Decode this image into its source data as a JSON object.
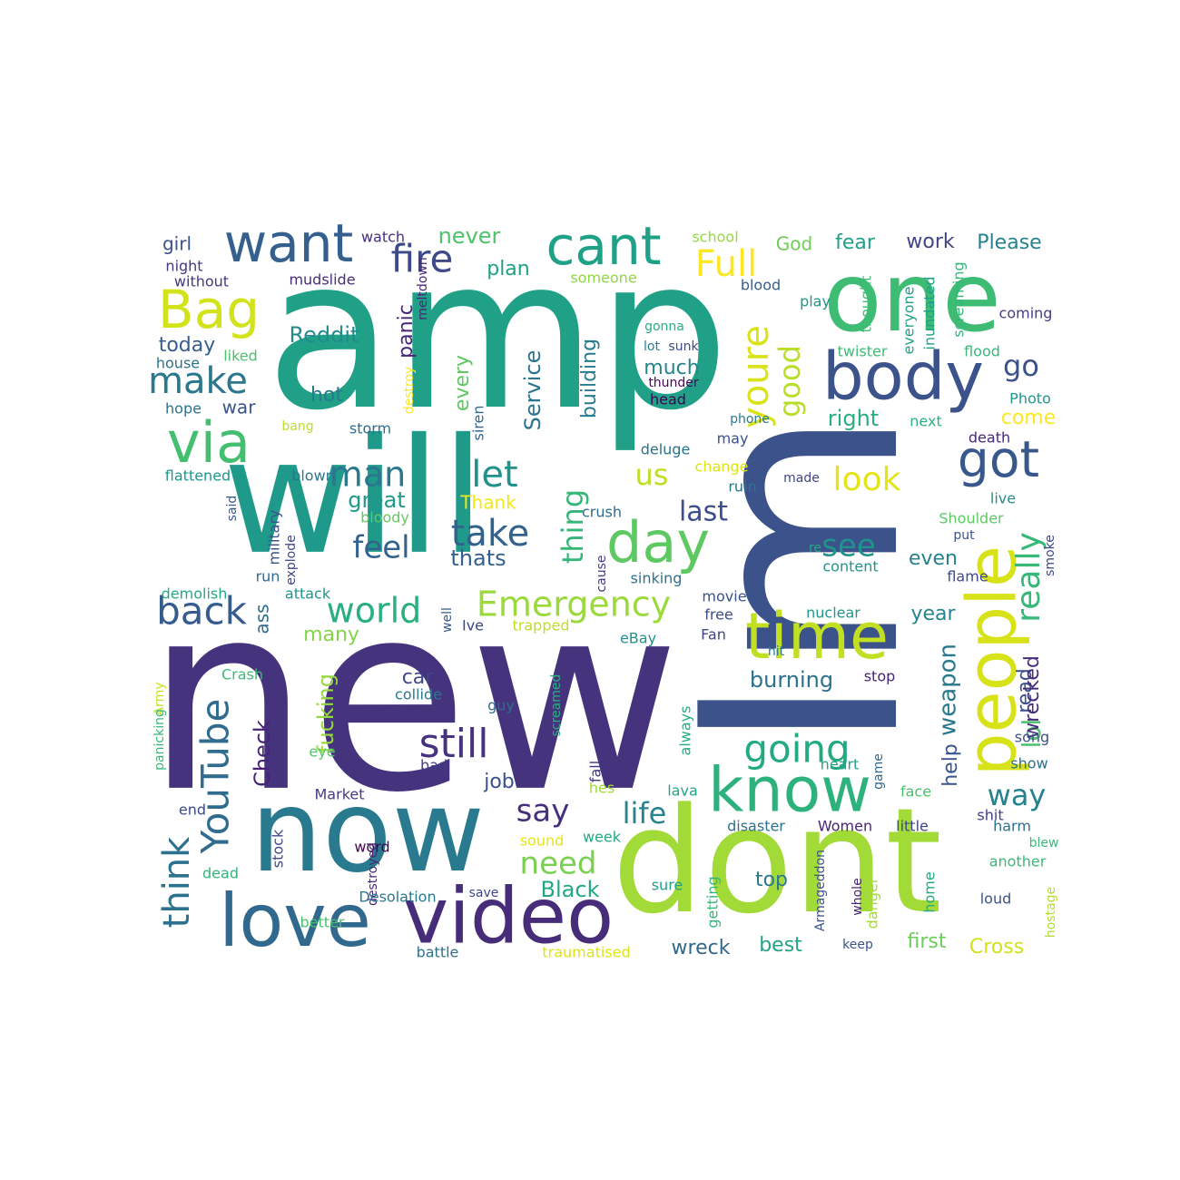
{
  "words": [
    {
      "text": "amp",
      "color": "#21a088"
    },
    {
      "text": "new",
      "color": "#46337e"
    },
    {
      "text": "Im",
      "color": "#3b528b"
    },
    {
      "text": "will",
      "color": "#1f9a8a"
    },
    {
      "text": "dont",
      "color": "#a2da37"
    },
    {
      "text": "now",
      "color": "#297a8e"
    },
    {
      "text": "one",
      "color": "#3fbc73"
    },
    {
      "text": "video",
      "color": "#472c7a"
    },
    {
      "text": "love",
      "color": "#31688e"
    },
    {
      "text": "people",
      "color": "#d8e219"
    },
    {
      "text": "body",
      "color": "#3b528b"
    },
    {
      "text": "time",
      "color": "#c2df23"
    },
    {
      "text": "know",
      "color": "#2db27d"
    },
    {
      "text": "via",
      "color": "#44bf70"
    },
    {
      "text": "want",
      "color": "#355f8d"
    },
    {
      "text": "cant",
      "color": "#1fa187"
    },
    {
      "text": "Bag",
      "color": "#d2e21b"
    },
    {
      "text": "day",
      "color": "#5ec962"
    },
    {
      "text": "got",
      "color": "#38588c"
    },
    {
      "text": "Emergency",
      "color": "#9bd93c"
    },
    {
      "text": "still",
      "color": "#46327e"
    },
    {
      "text": "YouTube",
      "color": "#2f6c8e"
    },
    {
      "text": "back",
      "color": "#365c8d"
    },
    {
      "text": "world",
      "color": "#2ab07f"
    },
    {
      "text": "going",
      "color": "#24aa83"
    },
    {
      "text": "make",
      "color": "#2a788e"
    },
    {
      "text": "take",
      "color": "#33638d"
    },
    {
      "text": "think",
      "color": "#2c728e"
    },
    {
      "text": "let",
      "color": "#20928c"
    },
    {
      "text": "man",
      "color": "#2a778e"
    },
    {
      "text": "fire",
      "color": "#3e4989"
    },
    {
      "text": "Full",
      "color": "#fde725"
    },
    {
      "text": "youre",
      "color": "#dae319"
    },
    {
      "text": "good",
      "color": "#b8de29"
    },
    {
      "text": "really",
      "color": "#37b878"
    },
    {
      "text": "see",
      "color": "#21918c"
    },
    {
      "text": "look",
      "color": "#e5e419"
    },
    {
      "text": "us",
      "color": "#bddf26"
    },
    {
      "text": "go",
      "color": "#3b528b"
    },
    {
      "text": "feel",
      "color": "#33638d"
    },
    {
      "text": "say",
      "color": "#46307e"
    },
    {
      "text": "need",
      "color": "#7ad151"
    },
    {
      "text": "life",
      "color": "#25848e"
    },
    {
      "text": "lol",
      "color": "#4ac16d"
    },
    {
      "text": "way",
      "color": "#26828e"
    },
    {
      "text": "thing",
      "color": "#35b779"
    },
    {
      "text": "last",
      "color": "#3d4e8a"
    },
    {
      "text": "Check",
      "color": "#482475"
    },
    {
      "text": "fucking",
      "color": "#95d840"
    },
    {
      "text": "weapon",
      "color": "#2a788e"
    },
    {
      "text": "read",
      "color": "#3c4f8a"
    },
    {
      "text": "wrecked",
      "color": "#472c7a"
    },
    {
      "text": "burning",
      "color": "#2c718e"
    },
    {
      "text": "help",
      "color": "#39558c"
    },
    {
      "text": "Black",
      "color": "#22a884"
    },
    {
      "text": "never",
      "color": "#4ec36b"
    },
    {
      "text": "great",
      "color": "#1f998a"
    },
    {
      "text": "thats",
      "color": "#355f8d"
    },
    {
      "text": "Reddit",
      "color": "#228b8d"
    },
    {
      "text": "plan",
      "color": "#1fa188"
    },
    {
      "text": "work",
      "color": "#414487"
    },
    {
      "text": "Please",
      "color": "#26828e"
    },
    {
      "text": "fear",
      "color": "#1fa088"
    },
    {
      "text": "God",
      "color": "#6ece58"
    },
    {
      "text": "much",
      "color": "#24878e"
    },
    {
      "text": "Service",
      "color": "#2c738e"
    },
    {
      "text": "building",
      "color": "#287c8e"
    },
    {
      "text": "right",
      "color": "#29af7f"
    },
    {
      "text": "come",
      "color": "#fde725"
    },
    {
      "text": "even",
      "color": "#26828e"
    },
    {
      "text": "year",
      "color": "#25858e"
    },
    {
      "text": "many",
      "color": "#84d44b"
    },
    {
      "text": "car",
      "color": "#3f4788"
    },
    {
      "text": "job",
      "color": "#3b518b"
    },
    {
      "text": "top",
      "color": "#2a788e"
    },
    {
      "text": "best",
      "color": "#20a386"
    },
    {
      "text": "first",
      "color": "#6ccd5a"
    },
    {
      "text": "Cross",
      "color": "#d0e11c"
    },
    {
      "text": "wreck",
      "color": "#31688e"
    },
    {
      "text": "today",
      "color": "#365d8d"
    },
    {
      "text": "girl",
      "color": "#3b518b"
    },
    {
      "text": "hot",
      "color": "#29798e"
    },
    {
      "text": "war",
      "color": "#39558c"
    },
    {
      "text": "panic",
      "color": "#482576"
    },
    {
      "text": "every",
      "color": "#5ec962"
    },
    {
      "text": "Thank",
      "color": "#f1e51d"
    },
    {
      "text": "ass",
      "color": "#2e6e8e"
    },
    {
      "text": "military",
      "color": "#3b528b"
    },
    {
      "text": "watch",
      "color": "#46307e"
    },
    {
      "text": "night",
      "color": "#453781"
    },
    {
      "text": "without",
      "color": "#453882"
    },
    {
      "text": "mudslide",
      "color": "#472d7b"
    },
    {
      "text": "meltdown",
      "color": "#482677"
    },
    {
      "text": "someone",
      "color": "#8fd744"
    },
    {
      "text": "school",
      "color": "#95d840"
    },
    {
      "text": "blood",
      "color": "#365d8d"
    },
    {
      "text": "play",
      "color": "#1f958b"
    },
    {
      "text": "thought",
      "color": "#3dbc74"
    },
    {
      "text": "everyone",
      "color": "#20a486"
    },
    {
      "text": "inundated",
      "color": "#1f9e89"
    },
    {
      "text": "screaming",
      "color": "#35b779"
    },
    {
      "text": "coming",
      "color": "#433e85"
    },
    {
      "text": "flood",
      "color": "#37b878"
    },
    {
      "text": "twister",
      "color": "#3dbc74"
    },
    {
      "text": "Photo",
      "color": "#1f988b"
    },
    {
      "text": "next",
      "color": "#2db27d"
    },
    {
      "text": "death",
      "color": "#482878"
    },
    {
      "text": "liked",
      "color": "#4ac16d"
    },
    {
      "text": "house",
      "color": "#2d718e"
    },
    {
      "text": "hope",
      "color": "#2c728e"
    },
    {
      "text": "gonna",
      "color": "#26ad81"
    },
    {
      "text": "lot",
      "color": "#277f8e"
    },
    {
      "text": "sunk",
      "color": "#3e4989"
    },
    {
      "text": "thunder",
      "color": "#450559"
    },
    {
      "text": "head",
      "color": "#440154"
    },
    {
      "text": "destroy",
      "color": "#fde725"
    },
    {
      "text": "siren",
      "color": "#31688e"
    },
    {
      "text": "phone",
      "color": "#2a788e"
    },
    {
      "text": "deluge",
      "color": "#2c738e"
    },
    {
      "text": "may",
      "color": "#3b528b"
    },
    {
      "text": "bang",
      "color": "#b5de2b"
    },
    {
      "text": "storm",
      "color": "#2e6e8e"
    },
    {
      "text": "flattened",
      "color": "#1f968b"
    },
    {
      "text": "blown",
      "color": "#2b758e"
    },
    {
      "text": "change",
      "color": "#dde318"
    },
    {
      "text": "made",
      "color": "#414487"
    },
    {
      "text": "ruin",
      "color": "#2b748e"
    },
    {
      "text": "live",
      "color": "#218f8d"
    },
    {
      "text": "said",
      "color": "#38588c"
    },
    {
      "text": "bloody",
      "color": "#62cb5f"
    },
    {
      "text": "crush",
      "color": "#2f6b8e"
    },
    {
      "text": "Shoulder",
      "color": "#5ec962"
    },
    {
      "text": "put",
      "color": "#3b528b"
    },
    {
      "text": "smoke",
      "color": "#3f4788"
    },
    {
      "text": "explode",
      "color": "#414487"
    },
    {
      "text": "cause",
      "color": "#453882"
    },
    {
      "text": "re",
      "color": "#24aa83"
    },
    {
      "text": "content",
      "color": "#1f958b"
    },
    {
      "text": "run",
      "color": "#31688e"
    },
    {
      "text": "sinking",
      "color": "#2d718e"
    },
    {
      "text": "flame",
      "color": "#3e4989"
    },
    {
      "text": "demolish",
      "color": "#23a983"
    },
    {
      "text": "attack",
      "color": "#1f968b"
    },
    {
      "text": "movie",
      "color": "#3b528b"
    },
    {
      "text": "free",
      "color": "#3e4c8a"
    },
    {
      "text": "nuclear",
      "color": "#1f988b"
    },
    {
      "text": "well",
      "color": "#38598c"
    },
    {
      "text": "Ive",
      "color": "#3e4989"
    },
    {
      "text": "trapped",
      "color": "#bddf26"
    },
    {
      "text": "Fan",
      "color": "#404688"
    },
    {
      "text": "eBay",
      "color": "#21918c"
    },
    {
      "text": "hit",
      "color": "#2a778e"
    },
    {
      "text": "Army",
      "color": "#cae11f"
    },
    {
      "text": "panicking",
      "color": "#38b977"
    },
    {
      "text": "Crash",
      "color": "#3dbc74"
    },
    {
      "text": "stop",
      "color": "#482475"
    },
    {
      "text": "wound",
      "color": "#46337e"
    },
    {
      "text": "collide",
      "color": "#2a788e"
    },
    {
      "text": "screamed",
      "color": "#2ab07f"
    },
    {
      "text": "guy",
      "color": "#2e6e8e"
    },
    {
      "text": "always",
      "color": "#26ad81"
    },
    {
      "text": "song",
      "color": "#3b528b"
    },
    {
      "text": "show",
      "color": "#2d708e"
    },
    {
      "text": "eye",
      "color": "#52c569"
    },
    {
      "text": "bad",
      "color": "#433e85"
    },
    {
      "text": "fall",
      "color": "#443a83"
    },
    {
      "text": "heart",
      "color": "#1fa287"
    },
    {
      "text": "game",
      "color": "#31688e"
    },
    {
      "text": "hes",
      "color": "#a0da39"
    },
    {
      "text": "lava",
      "color": "#22a785"
    },
    {
      "text": "face",
      "color": "#4ac16d"
    },
    {
      "text": "end",
      "color": "#3e4989"
    },
    {
      "text": "Market",
      "color": "#443b84"
    },
    {
      "text": "disaster",
      "color": "#2c718e"
    },
    {
      "text": "Women",
      "color": "#482475"
    },
    {
      "text": "little",
      "color": "#3f4788"
    },
    {
      "text": "shit",
      "color": "#433e85"
    },
    {
      "text": "harm",
      "color": "#2e6e8e"
    },
    {
      "text": "stock",
      "color": "#3e4989"
    },
    {
      "text": "word",
      "color": "#440154"
    },
    {
      "text": "sound",
      "color": "#e7e419"
    },
    {
      "text": "week",
      "color": "#22a884"
    },
    {
      "text": "blew",
      "color": "#38b977"
    },
    {
      "text": "another",
      "color": "#38b977"
    },
    {
      "text": "dead",
      "color": "#31b57b"
    },
    {
      "text": "destroyed",
      "color": "#482878"
    },
    {
      "text": "getting",
      "color": "#35b779"
    },
    {
      "text": "sure",
      "color": "#1fa088"
    },
    {
      "text": "Armageddon",
      "color": "#3b528b"
    },
    {
      "text": "whole",
      "color": "#482576"
    },
    {
      "text": "danger",
      "color": "#a5db36"
    },
    {
      "text": "home",
      "color": "#24aa83"
    },
    {
      "text": "hostage",
      "color": "#b0dd2f"
    },
    {
      "text": "loud",
      "color": "#3b528b"
    },
    {
      "text": "better",
      "color": "#46c06f"
    },
    {
      "text": "Desolation",
      "color": "#2a788e"
    },
    {
      "text": "save",
      "color": "#3f4788"
    },
    {
      "text": "battle",
      "color": "#2d718e"
    },
    {
      "text": "traumatised",
      "color": "#dde318"
    },
    {
      "text": "keep",
      "color": "#3b528b"
    }
  ]
}
